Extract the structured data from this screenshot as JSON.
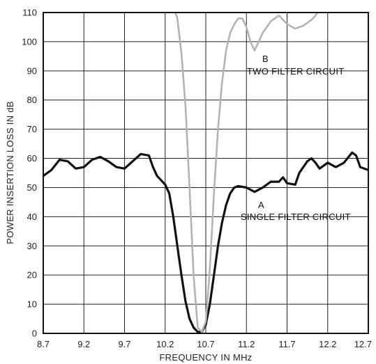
{
  "chart_data": {
    "type": "line",
    "xlabel": "FREQUENCY IN MHz",
    "ylabel": "POWER INSERTION LOSS IN dB",
    "xlim": [
      8.7,
      12.7
    ],
    "ylim": [
      0,
      110
    ],
    "x_ticks": [
      "8.7",
      "9.2",
      "9.7",
      "10.2",
      "10.7",
      "11.2",
      "11.7",
      "12.2",
      "12.7"
    ],
    "y_ticks": [
      "0",
      "10",
      "20",
      "30",
      "40",
      "50",
      "60",
      "70",
      "80",
      "90",
      "100",
      "110"
    ],
    "grid": true,
    "series": [
      {
        "name": "A",
        "color": "#111111",
        "points": [
          [
            8.7,
            54
          ],
          [
            8.8,
            56
          ],
          [
            8.9,
            59.5
          ],
          [
            9.0,
            59
          ],
          [
            9.1,
            56.5
          ],
          [
            9.2,
            57
          ],
          [
            9.3,
            59.5
          ],
          [
            9.4,
            60.5
          ],
          [
            9.5,
            59
          ],
          [
            9.6,
            57
          ],
          [
            9.7,
            56.5
          ],
          [
            9.8,
            59
          ],
          [
            9.9,
            61.5
          ],
          [
            10.0,
            61
          ],
          [
            10.05,
            57
          ],
          [
            10.1,
            54
          ],
          [
            10.2,
            51
          ],
          [
            10.25,
            48
          ],
          [
            10.3,
            40
          ],
          [
            10.35,
            30
          ],
          [
            10.4,
            20
          ],
          [
            10.45,
            11
          ],
          [
            10.5,
            5
          ],
          [
            10.55,
            2
          ],
          [
            10.6,
            0.5
          ],
          [
            10.65,
            0.5
          ],
          [
            10.7,
            3
          ],
          [
            10.75,
            10
          ],
          [
            10.8,
            20
          ],
          [
            10.85,
            30
          ],
          [
            10.9,
            38
          ],
          [
            10.95,
            44
          ],
          [
            11.0,
            48
          ],
          [
            11.05,
            50
          ],
          [
            11.1,
            50.5
          ],
          [
            11.2,
            50
          ],
          [
            11.3,
            48.5
          ],
          [
            11.4,
            50
          ],
          [
            11.5,
            52
          ],
          [
            11.6,
            52
          ],
          [
            11.65,
            53.5
          ],
          [
            11.7,
            51.5
          ],
          [
            11.8,
            51
          ],
          [
            11.85,
            55
          ],
          [
            11.95,
            59
          ],
          [
            12.0,
            60
          ],
          [
            12.05,
            58.5
          ],
          [
            12.1,
            56.5
          ],
          [
            12.2,
            58.5
          ],
          [
            12.3,
            57
          ],
          [
            12.4,
            58.5
          ],
          [
            12.5,
            62
          ],
          [
            12.55,
            61
          ],
          [
            12.6,
            57
          ],
          [
            12.7,
            56
          ]
        ]
      },
      {
        "name": "B",
        "color": "#b3b3b3",
        "points": [
          [
            10.3,
            112
          ],
          [
            10.35,
            108
          ],
          [
            10.4,
            96
          ],
          [
            10.45,
            78
          ],
          [
            10.5,
            50
          ],
          [
            10.55,
            20
          ],
          [
            10.6,
            2
          ],
          [
            10.65,
            0.5
          ],
          [
            10.7,
            4
          ],
          [
            10.75,
            22
          ],
          [
            10.8,
            48
          ],
          [
            10.85,
            70
          ],
          [
            10.9,
            86
          ],
          [
            10.95,
            97
          ],
          [
            11.0,
            103
          ],
          [
            11.05,
            106
          ],
          [
            11.1,
            108
          ],
          [
            11.15,
            108
          ],
          [
            11.2,
            105
          ],
          [
            11.25,
            100
          ],
          [
            11.3,
            97
          ],
          [
            11.35,
            100
          ],
          [
            11.4,
            103
          ],
          [
            11.5,
            107
          ],
          [
            11.6,
            109
          ],
          [
            11.7,
            106
          ],
          [
            11.8,
            104.5
          ],
          [
            11.9,
            105.5
          ],
          [
            12.0,
            107.5
          ],
          [
            12.05,
            109
          ],
          [
            12.1,
            111
          ]
        ]
      }
    ],
    "annotations": {
      "a_letter": "A",
      "a_label": "SINGLE FILTER CIRCUIT",
      "b_letter": "B",
      "b_label": "TWO FILTER CIRCUIT"
    }
  }
}
